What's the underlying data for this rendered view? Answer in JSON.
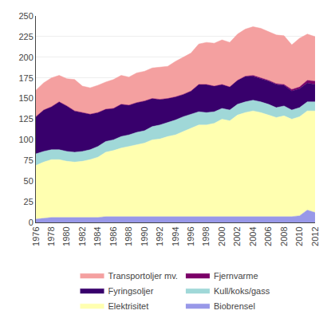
{
  "chart_data": {
    "type": "area",
    "stacked": true,
    "x": [
      1976,
      1977,
      1978,
      1979,
      1980,
      1981,
      1982,
      1983,
      1984,
      1985,
      1986,
      1987,
      1988,
      1989,
      1990,
      1991,
      1992,
      1993,
      1994,
      1995,
      1996,
      1997,
      1998,
      1999,
      2000,
      2001,
      2002,
      2003,
      2004,
      2005,
      2006,
      2007,
      2008,
      2009,
      2010,
      2011,
      2012
    ],
    "series": [
      {
        "name": "Biobrensel",
        "color": "#9898e8",
        "values": [
          4,
          5,
          6,
          6,
          6,
          6,
          6,
          6,
          6,
          7,
          7,
          7,
          7,
          7,
          7,
          7,
          7,
          7,
          7,
          7,
          7,
          7,
          7,
          7,
          7,
          7,
          7,
          7,
          7,
          7,
          7,
          7,
          7,
          7,
          8,
          15,
          12
        ]
      },
      {
        "name": "Elektrisitet",
        "color": "#ffffb0",
        "values": [
          65,
          68,
          70,
          70,
          68,
          67,
          68,
          70,
          73,
          78,
          80,
          83,
          85,
          87,
          89,
          93,
          94,
          97,
          99,
          103,
          107,
          111,
          111,
          113,
          118,
          116,
          123,
          126,
          128,
          126,
          123,
          120,
          122,
          118,
          120,
          120,
          123
        ]
      },
      {
        "name": "Kull/koks/gass",
        "color": "#a0d8d8",
        "values": [
          14,
          13,
          12,
          12,
          12,
          12,
          12,
          12,
          13,
          13,
          13,
          14,
          14,
          15,
          15,
          16,
          17,
          17,
          18,
          18,
          17,
          16,
          15,
          14,
          13,
          13,
          13,
          13,
          13,
          13,
          13,
          12,
          12,
          11,
          11,
          11,
          11
        ]
      },
      {
        "name": "Fyringsoljer",
        "color": "#38006c",
        "values": [
          45,
          50,
          52,
          58,
          55,
          50,
          47,
          43,
          41,
          39,
          38,
          39,
          36,
          36,
          36,
          34,
          31,
          29,
          28,
          27,
          28,
          33,
          34,
          31,
          29,
          28,
          29,
          31,
          29,
          28,
          28,
          28,
          25,
          23,
          23,
          23,
          21
        ]
      },
      {
        "name": "Fjernvarme",
        "color": "#7b0068",
        "values": [
          0,
          0,
          0,
          0,
          0,
          0,
          0,
          0,
          0,
          0,
          0,
          0,
          0,
          0,
          0,
          0,
          0,
          0,
          0,
          0,
          0,
          0,
          0,
          0,
          0,
          0,
          0,
          0,
          1,
          1,
          1,
          1,
          1,
          2,
          2,
          3,
          4
        ]
      },
      {
        "name": "Transportoljer mv.",
        "color": "#f4a0a0",
        "values": [
          32,
          33,
          35,
          32,
          33,
          38,
          32,
          32,
          33,
          33,
          35,
          35,
          34,
          36,
          36,
          37,
          39,
          39,
          43,
          45,
          46,
          49,
          51,
          52,
          54,
          54,
          56,
          57,
          59,
          60,
          59,
          59,
          59,
          54,
          59,
          56,
          54
        ]
      }
    ],
    "xlim": [
      1976,
      2012
    ],
    "xticks": [
      1976,
      1978,
      1980,
      1982,
      1984,
      1986,
      1988,
      1990,
      1992,
      1994,
      1996,
      1998,
      2000,
      2002,
      2004,
      2006,
      2008,
      2010,
      2012
    ],
    "ylim": [
      0,
      250
    ],
    "yticks": [
      0,
      25,
      50,
      75,
      100,
      125,
      150,
      175,
      200,
      225,
      250
    ],
    "grid": "y",
    "legend": "bottom"
  }
}
